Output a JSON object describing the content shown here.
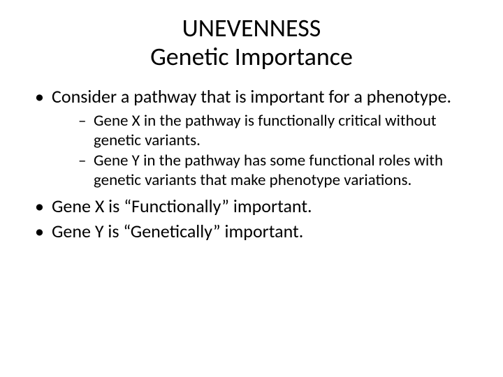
{
  "title": {
    "line1": "UNEVENNESS",
    "line2": "Genetic Importance"
  },
  "bullets": {
    "b1": "Consider a pathway that is important for a phenotype.",
    "b2": "Gene X is “Functionally” important.",
    "b3": "Gene Y is “Genetically” important."
  },
  "sub": {
    "s1": "Gene X in the pathway is functionally critical without genetic variants.",
    "s2": "Gene Y in the pathway has some functional roles with genetic variants that make phenotype variations."
  },
  "style": {
    "background_color": "#ffffff",
    "text_color": "#000000",
    "title_fontsize": 36,
    "bullet_fontsize": 26,
    "sub_fontsize": 23,
    "font_family": "Calibri"
  }
}
